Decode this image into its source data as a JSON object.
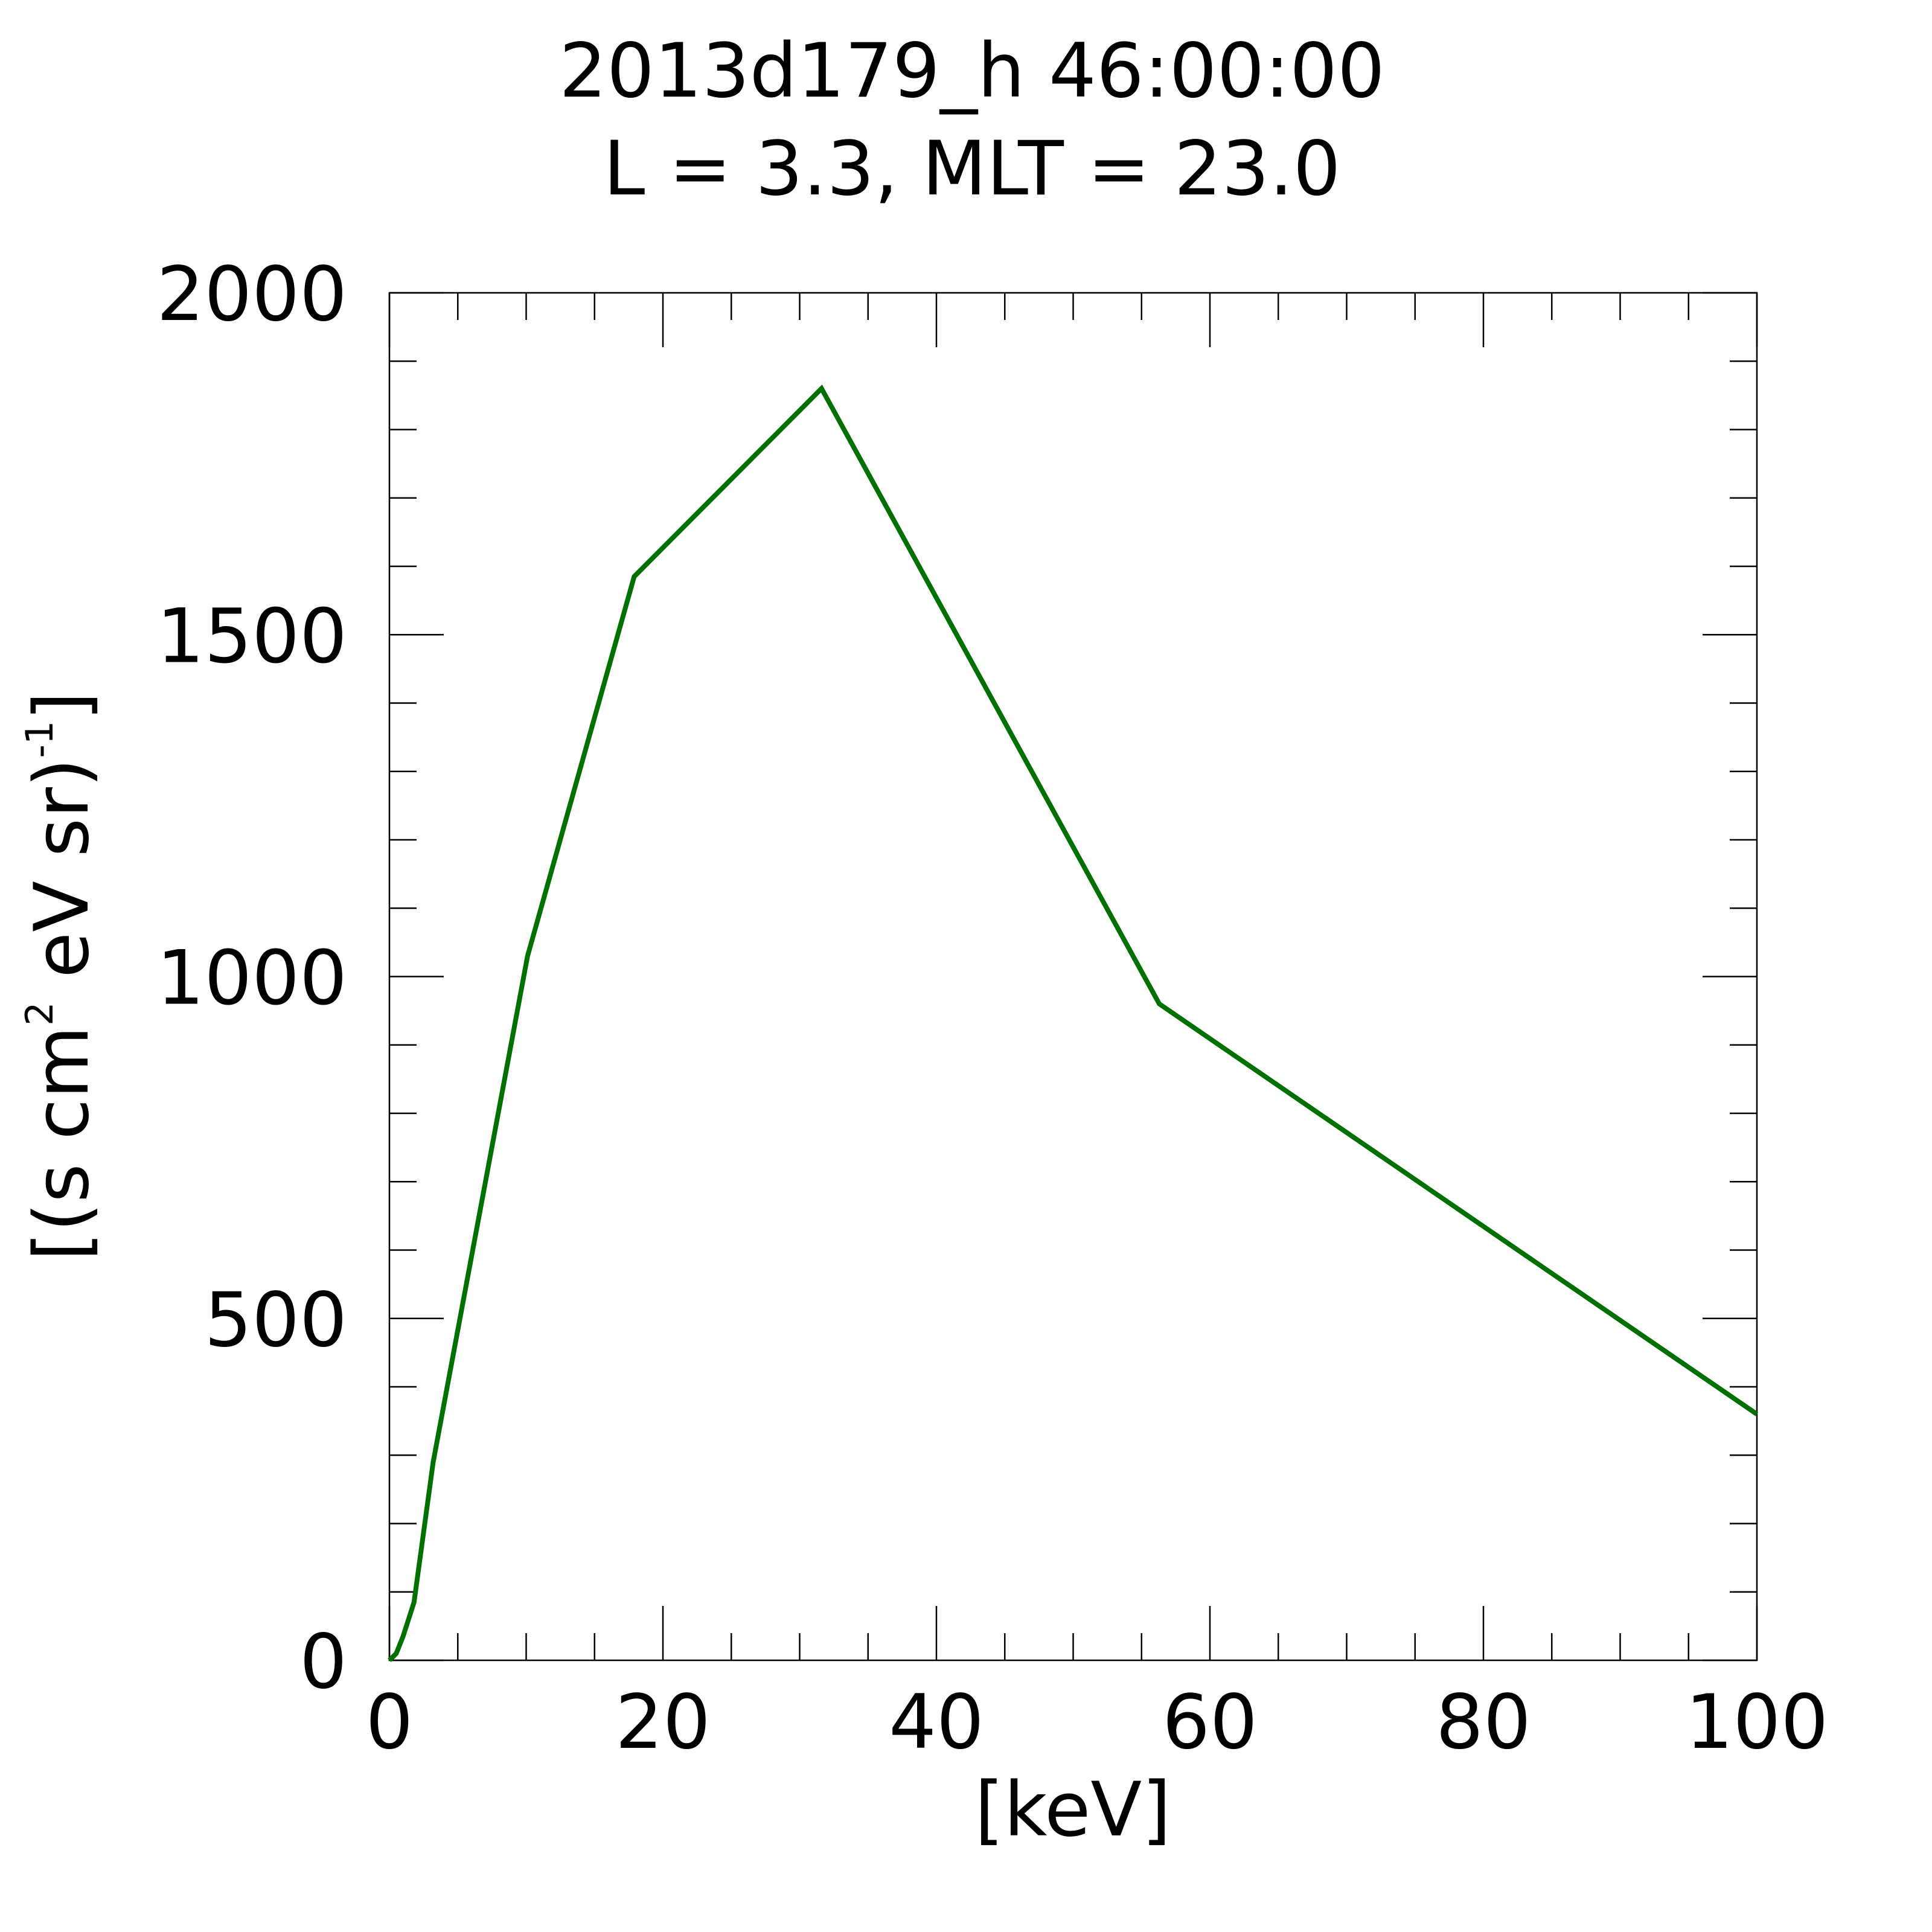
{
  "chart_data": {
    "type": "line",
    "title": "2013d179_h  46:00:00",
    "subtitle": "L = 3.3, MLT = 23.0",
    "xlabel": "[keV]",
    "ylabel_parts": {
      "open": "[(s cm",
      "sup1": "2",
      "mid": " eV sr)",
      "sup2": "-1",
      "close": "]"
    },
    "xlim": [
      0,
      100
    ],
    "ylim": [
      0,
      2000
    ],
    "x_major_ticks": [
      0,
      20,
      40,
      60,
      80,
      100
    ],
    "x_tick_labels": [
      "0",
      "20",
      "40",
      "60",
      "80",
      "100"
    ],
    "x_minor_step": 5,
    "y_major_ticks": [
      0,
      500,
      1000,
      1500,
      2000
    ],
    "y_tick_labels": [
      "0",
      "500",
      "1000",
      "1500",
      "2000"
    ],
    "y_minor_step": 100,
    "grid": false,
    "series": [
      {
        "color": "#007000",
        "x": [
          0,
          0.5,
          1.0,
          1.8,
          3.2,
          10.1,
          17.9,
          31.6,
          56.3,
          100
        ],
        "y": [
          0,
          10,
          35,
          85,
          290,
          1030,
          1585,
          1860,
          960,
          360
        ]
      }
    ]
  }
}
